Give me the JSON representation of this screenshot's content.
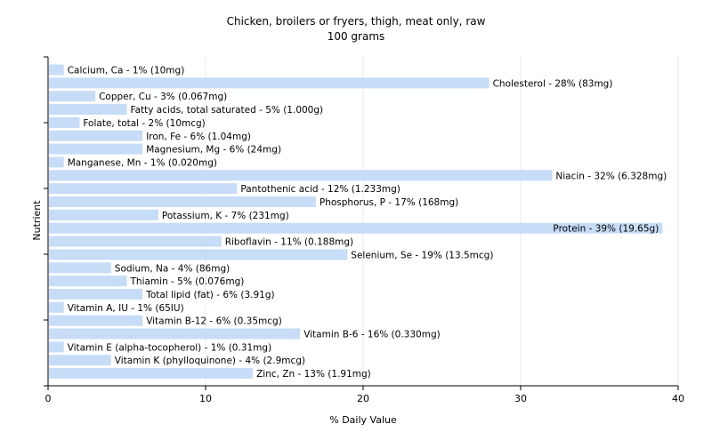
{
  "chart_data": {
    "type": "bar",
    "orientation": "horizontal",
    "title": "Chicken, broilers or fryers, thigh, meat only, raw",
    "subtitle": "100 grams",
    "xlabel": "% Daily Value",
    "ylabel": "Nutrient",
    "xlim": [
      0,
      40
    ],
    "xticks": [
      0,
      10,
      20,
      30,
      40
    ],
    "grid": true,
    "bar_color": "#c6dcf7",
    "categories": [
      "Calcium, Ca",
      "Cholesterol",
      "Copper, Cu",
      "Fatty acids, total saturated",
      "Folate, total",
      "Iron, Fe",
      "Magnesium, Mg",
      "Manganese, Mn",
      "Niacin",
      "Pantothenic acid",
      "Phosphorus, P",
      "Potassium, K",
      "Protein",
      "Riboflavin",
      "Selenium, Se",
      "Sodium, Na",
      "Thiamin",
      "Total lipid (fat)",
      "Vitamin A, IU",
      "Vitamin B-12",
      "Vitamin B-6",
      "Vitamin E (alpha-tocopherol)",
      "Vitamin K (phylloquinone)",
      "Zinc, Zn"
    ],
    "values": [
      1,
      28,
      3,
      5,
      2,
      6,
      6,
      1,
      32,
      12,
      17,
      7,
      39,
      11,
      19,
      4,
      5,
      6,
      1,
      6,
      16,
      1,
      4,
      13
    ],
    "labels": [
      "Calcium, Ca - 1% (10mg)",
      "Cholesterol - 28% (83mg)",
      "Copper, Cu - 3% (0.067mg)",
      "Fatty acids, total saturated - 5% (1.000g)",
      "Folate, total - 2% (10mcg)",
      "Iron, Fe - 6% (1.04mg)",
      "Magnesium, Mg - 6% (24mg)",
      "Manganese, Mn - 1% (0.020mg)",
      "Niacin - 32% (6.328mg)",
      "Pantothenic acid - 12% (1.233mg)",
      "Phosphorus, P - 17% (168mg)",
      "Potassium, K - 7% (231mg)",
      "Protein - 39% (19.65g)",
      "Riboflavin - 11% (0.188mg)",
      "Selenium, Se - 19% (13.5mcg)",
      "Sodium, Na - 4% (86mg)",
      "Thiamin - 5% (0.076mg)",
      "Total lipid (fat) - 6% (3.91g)",
      "Vitamin A, IU - 1% (65IU)",
      "Vitamin B-12 - 6% (0.35mcg)",
      "Vitamin B-6 - 16% (0.330mg)",
      "Vitamin E (alpha-tocopherol) - 1% (0.31mg)",
      "Vitamin K (phylloquinone) - 4% (2.9mcg)",
      "Zinc, Zn - 13% (1.91mg)"
    ]
  }
}
